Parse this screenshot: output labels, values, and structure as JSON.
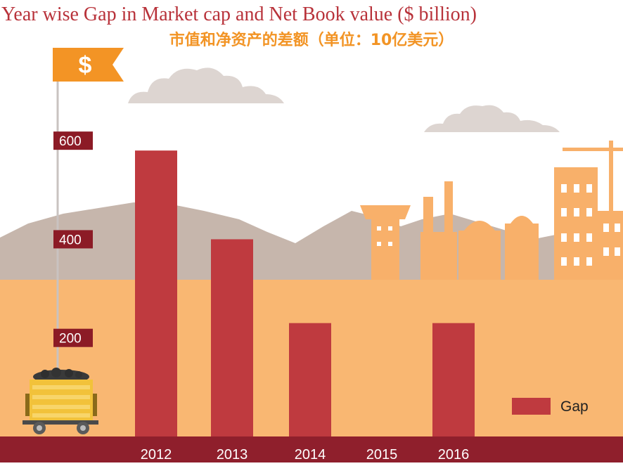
{
  "chart_data": {
    "type": "bar",
    "title": "Year wise Gap in Market cap and Net Book value ($ billion)",
    "subtitle": "市值和净资产的差额（单位：10亿美元）",
    "categories": [
      "2012",
      "2013",
      "2014",
      "2015",
      "2016"
    ],
    "series": [
      {
        "name": "Gap",
        "values": [
          580,
          400,
          230,
          0,
          230
        ]
      }
    ],
    "yticks": [
      200,
      400,
      600
    ],
    "ylim": [
      0,
      700
    ],
    "legend": "bottom-right",
    "grid": false,
    "bar_color": "#bf3a3f"
  },
  "decor": {
    "flag_symbol": "$"
  },
  "colors": {
    "title": "#b8323a",
    "subtitle": "#f29425",
    "bar": "#bf3a3f",
    "ground": "#8f1f2c",
    "tick_badge": "#8c1b26",
    "background": "#f9b772",
    "mountain": "#c6b6ac",
    "factory": "#f8b06a",
    "flag": "#f39425"
  }
}
